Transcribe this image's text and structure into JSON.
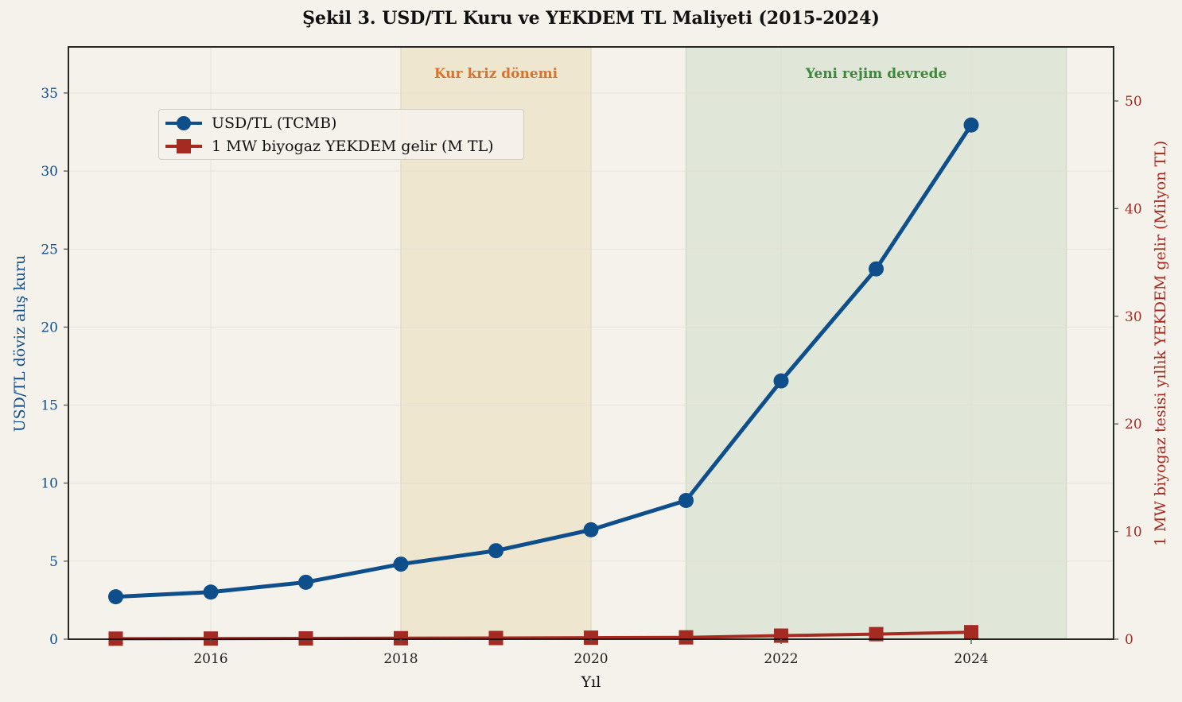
{
  "title": "Şekil 3. USD/TL Kuru ve YEKDEM TL Maliyeti (2015-2024)",
  "colors": {
    "background": "#f5f2eb",
    "usd_series": "#0e4f8b",
    "yekdem_series": "#a52a22",
    "crisis_band": "#efe6cf",
    "regime_band": "#e0e6d8",
    "crisis_label": "#d9732b",
    "regime_label": "#3b8a3a"
  },
  "annotations": {
    "crisis": "Kur kriz dönemi",
    "regime": "Yeni rejim devrede"
  },
  "legend": {
    "items": [
      {
        "label": "USD/TL (TCMB)",
        "marker": "circle",
        "color": "#0e4f8b"
      },
      {
        "label": "1 MW biyogaz YEKDEM gelir (M TL)",
        "marker": "square",
        "color": "#a52a22"
      }
    ]
  },
  "axes": {
    "x_label": "Yıl",
    "y_left_label": "USD/TL döviz alış kuru",
    "y_right_label": "1 MW biyogaz tesisi yıllık YEKDEM gelir (Milyon TL)",
    "x_ticks": [
      "2016",
      "2018",
      "2020",
      "2022",
      "2024"
    ],
    "y_left_ticks": [
      "0",
      "5",
      "10",
      "15",
      "20",
      "25",
      "30",
      "35"
    ],
    "y_right_ticks": [
      "0",
      "10",
      "20",
      "30",
      "40",
      "50"
    ]
  },
  "chart_data": {
    "type": "line",
    "title": "Şekil 3. USD/TL Kuru ve YEKDEM TL Maliyeti (2015-2024)",
    "xlabel": "Yıl",
    "ylabel": "USD/TL döviz alış kuru",
    "ylabel_right": "1 MW biyogaz tesisi yıllık YEKDEM gelir (Milyon TL)",
    "x": [
      2015,
      2016,
      2017,
      2018,
      2019,
      2020,
      2021,
      2022,
      2023,
      2024
    ],
    "xlim": [
      2014.5,
      2025.5
    ],
    "ylim": [
      0,
      38
    ],
    "ylim_right": [
      0,
      55
    ],
    "grid": true,
    "legend_position": "upper left",
    "series": [
      {
        "name": "USD/TL (TCMB)",
        "axis": "left",
        "marker": "circle",
        "values": [
          2.72,
          3.02,
          3.65,
          4.81,
          5.67,
          7.01,
          8.89,
          16.55,
          23.73,
          32.95
        ]
      },
      {
        "name": "1 MW biyogaz YEKDEM gelir (M TL)",
        "axis": "right",
        "marker": "square",
        "values": [
          0.05,
          0.06,
          0.07,
          0.09,
          0.11,
          0.14,
          0.17,
          0.33,
          0.47,
          0.65
        ]
      }
    ],
    "shaded_regions": [
      {
        "label": "Kur kriz dönemi",
        "x_start": 2018,
        "x_end": 2020
      },
      {
        "label": "Yeni rejim devrede",
        "x_start": 2021,
        "x_end": 2025
      }
    ]
  }
}
